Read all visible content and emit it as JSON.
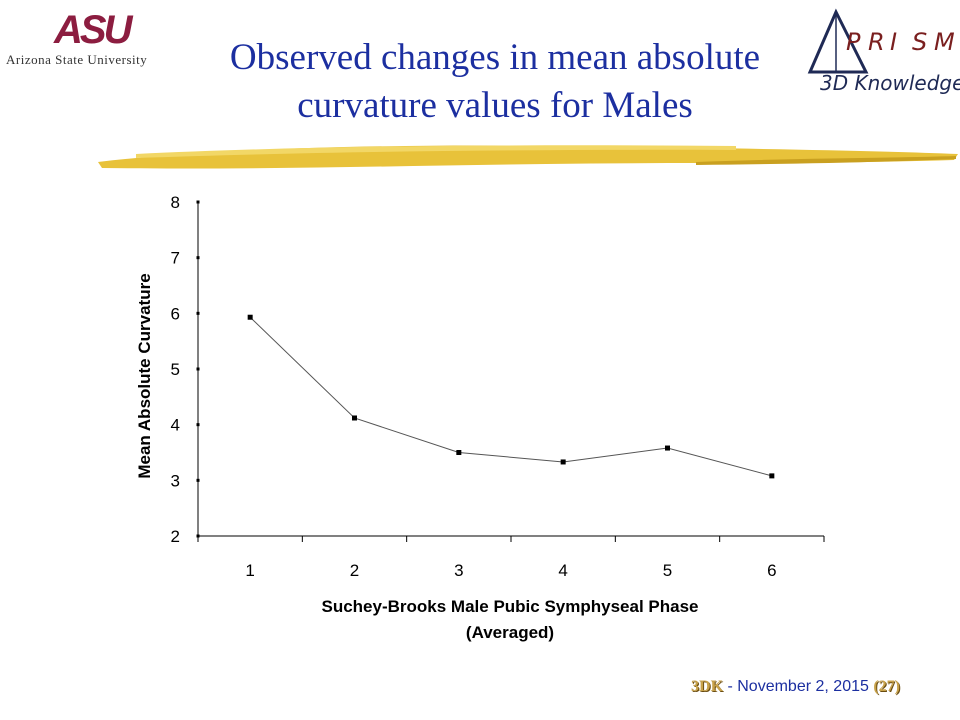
{
  "header": {
    "asu_mark": "ASU",
    "asu_name": "Arizona State University",
    "prism_letters": [
      "P",
      "R",
      "I",
      "S",
      "M"
    ],
    "prism_tagline": "3D Knowledge",
    "title_line1": "Observed changes in mean absolute",
    "title_line2": "curvature values for Males",
    "accent_color": "#1c2fa0",
    "rule_color": "#e8c23a"
  },
  "chart_data": {
    "type": "line",
    "categories": [
      "1",
      "2",
      "3",
      "4",
      "5",
      "6"
    ],
    "x": [
      1,
      2,
      3,
      4,
      5,
      6
    ],
    "series": [
      {
        "values": [
          5.93,
          4.12,
          3.5,
          3.33,
          3.58,
          3.08
        ]
      }
    ],
    "xlabel": "Suchey-Brooks Male Pubic Symphyseal Phase (Averaged)",
    "xlabel_lines": [
      "Suchey-Brooks Male Pubic Symphyseal Phase",
      "(Averaged)"
    ],
    "ylabel": "Mean Absolute Curvature",
    "ylim": [
      2,
      8
    ],
    "yticks": [
      2,
      3,
      4,
      5,
      6,
      7,
      8
    ],
    "grid": false,
    "legend": "none",
    "line_color": "#555555",
    "marker_color": "#000000"
  },
  "footer": {
    "code": "3DK",
    "separator": " - ",
    "date": "November 2, 2015",
    "page": "(27)"
  }
}
